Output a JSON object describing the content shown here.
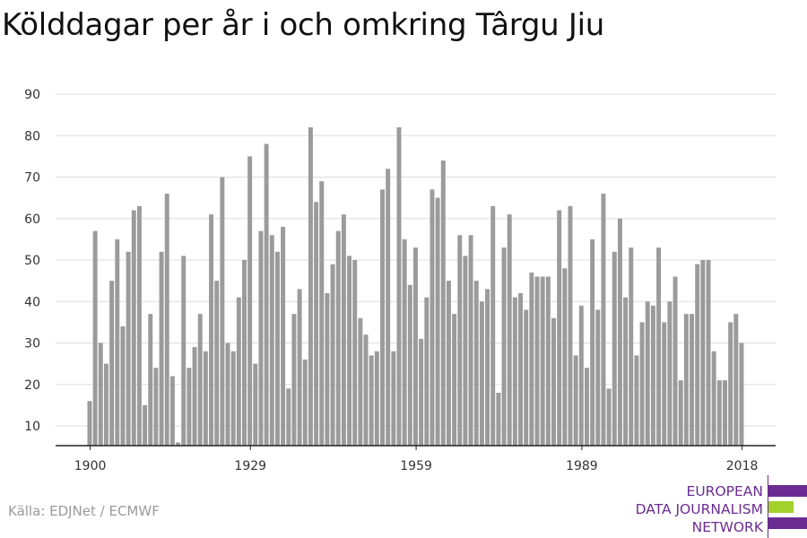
{
  "colors": {
    "bar": "#9b9b9b",
    "grid": "#dddddd",
    "axis": "#222222",
    "tick_text": "#333333",
    "brand_purple": "#6b2c91",
    "brand_green": "#a3d12b"
  },
  "chart_data": {
    "type": "bar",
    "title": "Kölddagar per år i och omkring Târgu Jiu",
    "xlabel": "",
    "ylabel": "",
    "ylim": [
      5,
      90
    ],
    "yticks": [
      10,
      20,
      30,
      40,
      50,
      60,
      70,
      80,
      90
    ],
    "xticks": [
      1900,
      1929,
      1959,
      1989,
      2018
    ],
    "grid": true,
    "x_start": 1900,
    "x_end": 2018,
    "values": [
      16,
      57,
      30,
      25,
      45,
      55,
      34,
      52,
      62,
      63,
      15,
      37,
      24,
      52,
      66,
      22,
      6,
      51,
      24,
      29,
      37,
      28,
      61,
      45,
      70,
      30,
      28,
      41,
      50,
      75,
      25,
      57,
      78,
      56,
      52,
      58,
      19,
      37,
      43,
      26,
      82,
      64,
      69,
      42,
      49,
      57,
      61,
      51,
      50,
      36,
      32,
      27,
      28,
      67,
      72,
      28,
      82,
      55,
      44,
      53,
      31,
      41,
      67,
      65,
      74,
      45,
      37,
      56,
      51,
      56,
      45,
      40,
      43,
      63,
      18,
      53,
      61,
      41,
      42,
      38,
      47,
      46,
      46,
      46,
      36,
      62,
      48,
      63,
      27,
      39,
      24,
      55,
      38,
      66,
      19,
      52,
      60,
      41,
      53,
      27,
      35,
      40,
      39,
      53,
      35,
      40,
      46,
      21,
      37,
      37,
      49,
      50,
      50,
      28,
      21,
      21,
      35,
      37,
      30
    ]
  },
  "footer": {
    "source": "Källa: EDJNet / ECMWF",
    "brand": [
      "EUROPEAN",
      "DATA JOURNALISM",
      "NETWORK"
    ]
  }
}
